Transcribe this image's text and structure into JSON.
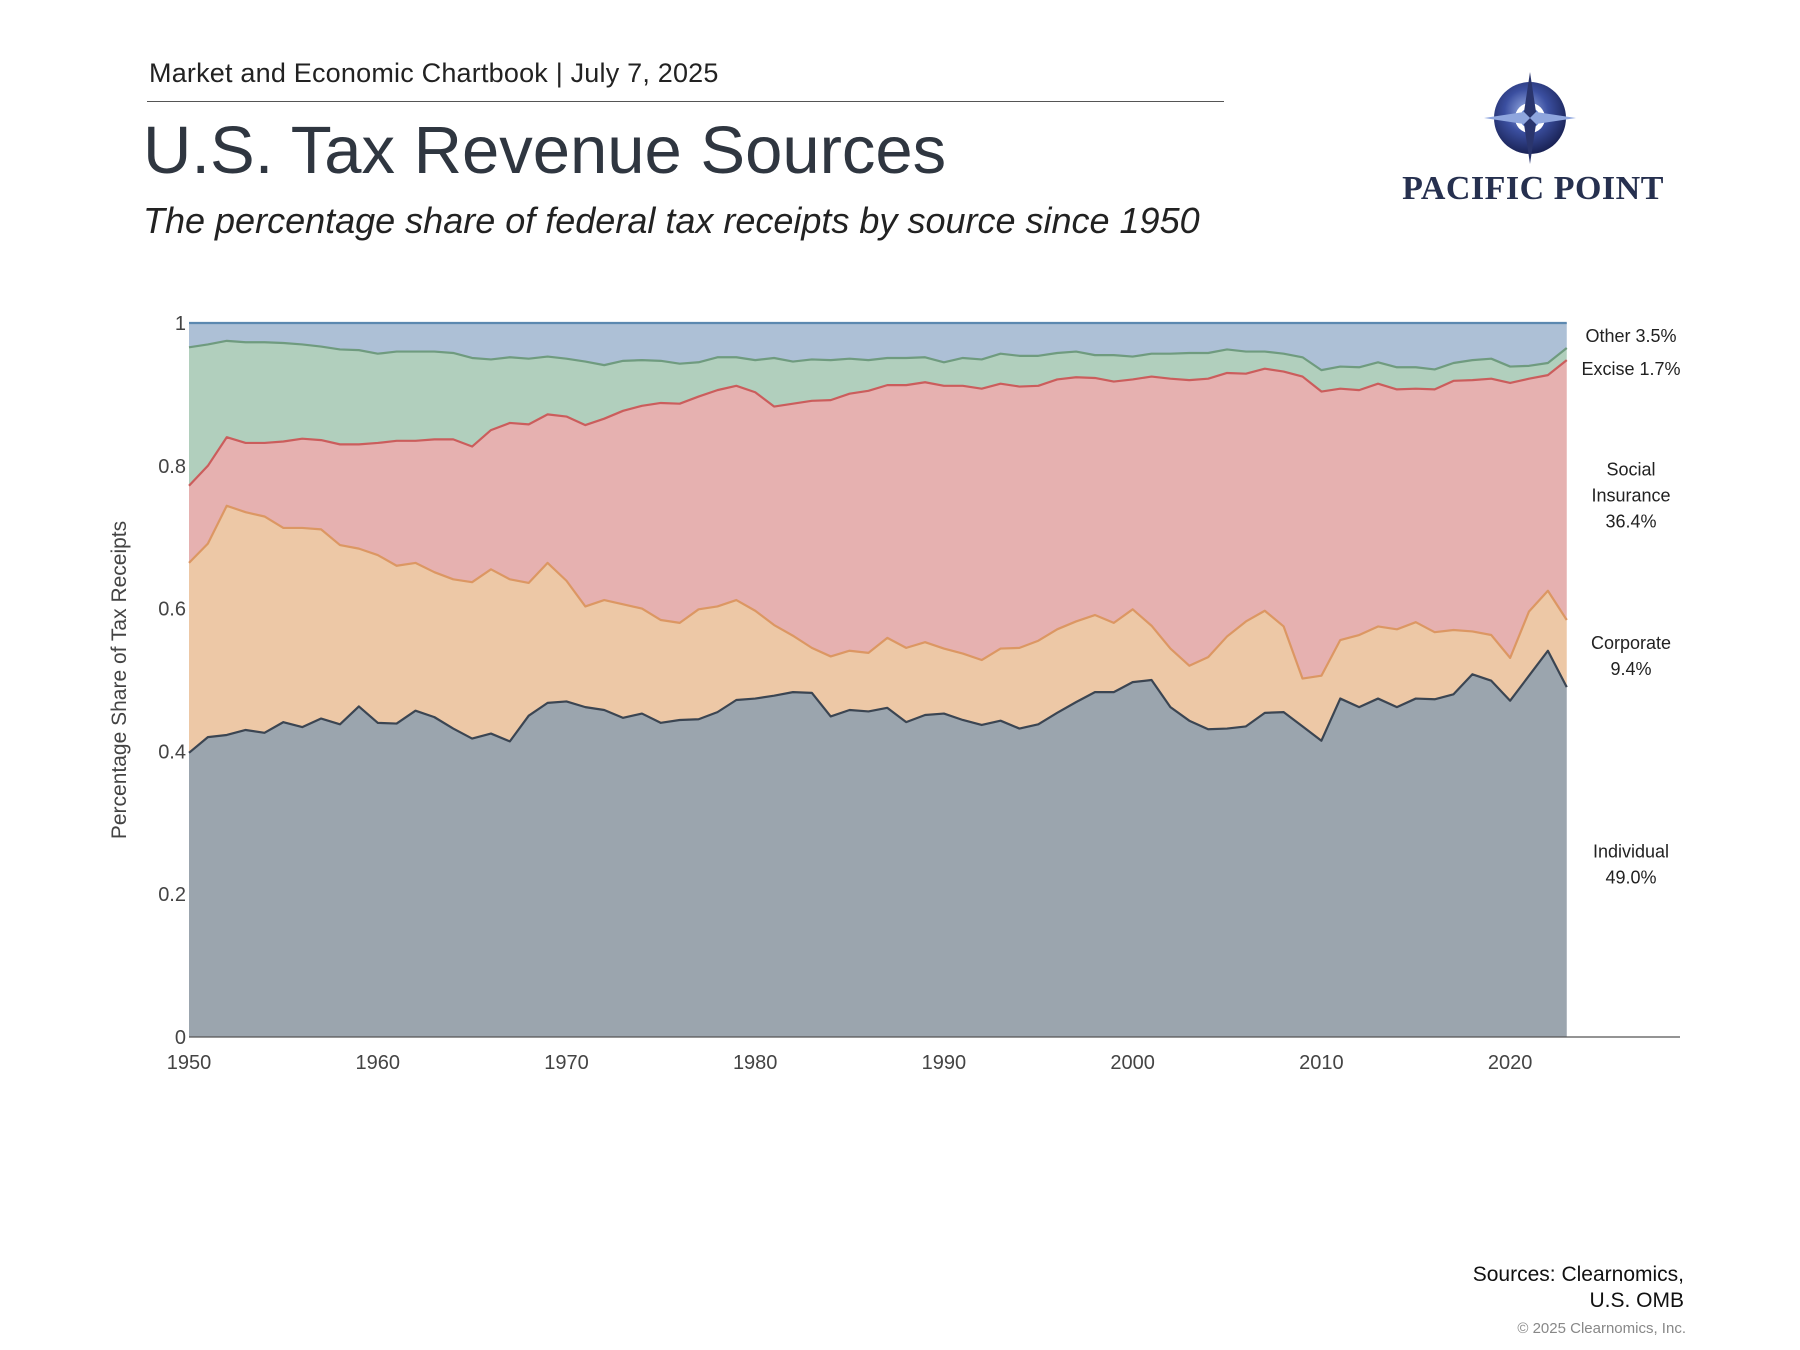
{
  "header": {
    "chartbook": "Market and Economic Chartbook | July 7, 2025",
    "title": "U.S. Tax Revenue Sources",
    "subtitle": "The percentage share of federal tax receipts by source since 1950"
  },
  "logo": {
    "text": "PACIFIC POINT",
    "icon": "compass-icon"
  },
  "footer": {
    "sources_line1": "Sources: Clearnomics,",
    "sources_line2": "U.S. OMB",
    "copyright": "© 2025 Clearnomics, Inc."
  },
  "chart_data": {
    "type": "area",
    "stacked": true,
    "ylabel": "Percentage Share of Tax Receipts",
    "ylim": [
      0,
      1
    ],
    "xlim": [
      1950,
      2029
    ],
    "y_ticks": [
      0,
      0.2,
      0.4,
      0.6,
      0.8,
      1
    ],
    "y_tick_labels": [
      "0",
      "0.2",
      "0.4",
      "0.6",
      "0.8",
      "1"
    ],
    "x_ticks": [
      1950,
      1960,
      1970,
      1980,
      1990,
      2000,
      2010,
      2020
    ],
    "x_tick_labels": [
      "1950",
      "1960",
      "1970",
      "1980",
      "1990",
      "2000",
      "2010",
      "2020"
    ],
    "grid": false,
    "legend": "right-side inline labels",
    "x": [
      1950,
      1951,
      1952,
      1953,
      1954,
      1955,
      1956,
      1957,
      1958,
      1959,
      1960,
      1961,
      1962,
      1963,
      1964,
      1965,
      1966,
      1967,
      1968,
      1969,
      1970,
      1971,
      1972,
      1973,
      1974,
      1975,
      1976,
      1977,
      1978,
      1979,
      1980,
      1981,
      1982,
      1983,
      1984,
      1985,
      1986,
      1987,
      1988,
      1989,
      1990,
      1991,
      1992,
      1993,
      1994,
      1995,
      1996,
      1997,
      1998,
      1999,
      2000,
      2001,
      2002,
      2003,
      2004,
      2005,
      2006,
      2007,
      2008,
      2009,
      2010,
      2011,
      2012,
      2013,
      2014,
      2015,
      2016,
      2017,
      2018,
      2019,
      2020,
      2021,
      2022,
      2023
    ],
    "cumulative_series": [
      {
        "name": "Individual",
        "color": "#9ba5ae",
        "line_color": "#3b4552",
        "top": [
          0.398,
          0.42,
          0.423,
          0.43,
          0.426,
          0.441,
          0.434,
          0.446,
          0.438,
          0.463,
          0.44,
          0.439,
          0.457,
          0.448,
          0.432,
          0.418,
          0.425,
          0.414,
          0.45,
          0.468,
          0.47,
          0.462,
          0.458,
          0.447,
          0.453,
          0.44,
          0.444,
          0.445,
          0.455,
          0.472,
          0.474,
          0.478,
          0.483,
          0.482,
          0.449,
          0.458,
          0.456,
          0.461,
          0.441,
          0.451,
          0.453,
          0.444,
          0.437,
          0.443,
          0.432,
          0.438,
          0.454,
          0.469,
          0.483,
          0.483,
          0.497,
          0.5,
          0.462,
          0.443,
          0.431,
          0.432,
          0.435,
          0.454,
          0.455,
          0.435,
          0.415,
          0.474,
          0.462,
          0.474,
          0.462,
          0.474,
          0.473,
          0.48,
          0.508,
          0.499,
          0.471,
          0.506,
          0.541,
          0.49
        ]
      },
      {
        "name": "Corporate",
        "color": "#edc8a6",
        "line_color": "#dc9763",
        "top": [
          0.664,
          0.691,
          0.744,
          0.735,
          0.729,
          0.713,
          0.713,
          0.711,
          0.689,
          0.684,
          0.675,
          0.66,
          0.664,
          0.651,
          0.641,
          0.637,
          0.655,
          0.641,
          0.636,
          0.664,
          0.639,
          0.603,
          0.612,
          0.606,
          0.6,
          0.584,
          0.58,
          0.599,
          0.603,
          0.612,
          0.597,
          0.577,
          0.562,
          0.545,
          0.533,
          0.541,
          0.538,
          0.559,
          0.545,
          0.553,
          0.544,
          0.537,
          0.528,
          0.544,
          0.545,
          0.555,
          0.571,
          0.582,
          0.591,
          0.58,
          0.599,
          0.576,
          0.544,
          0.52,
          0.532,
          0.561,
          0.582,
          0.597,
          0.575,
          0.502,
          0.506,
          0.556,
          0.563,
          0.575,
          0.571,
          0.581,
          0.567,
          0.57,
          0.568,
          0.563,
          0.531,
          0.596,
          0.625,
          0.584
        ]
      },
      {
        "name": "Social Insurance",
        "color": "#e6b1b0",
        "line_color": "#cb5d5c",
        "top": [
          0.772,
          0.8,
          0.84,
          0.832,
          0.832,
          0.834,
          0.838,
          0.836,
          0.83,
          0.83,
          0.832,
          0.835,
          0.835,
          0.837,
          0.837,
          0.827,
          0.85,
          0.86,
          0.858,
          0.872,
          0.869,
          0.857,
          0.866,
          0.877,
          0.884,
          0.888,
          0.887,
          0.897,
          0.906,
          0.912,
          0.903,
          0.883,
          0.887,
          0.891,
          0.892,
          0.901,
          0.905,
          0.913,
          0.913,
          0.917,
          0.912,
          0.912,
          0.908,
          0.915,
          0.911,
          0.912,
          0.921,
          0.924,
          0.923,
          0.918,
          0.921,
          0.925,
          0.922,
          0.92,
          0.922,
          0.93,
          0.929,
          0.936,
          0.932,
          0.925,
          0.904,
          0.908,
          0.906,
          0.915,
          0.907,
          0.908,
          0.907,
          0.919,
          0.92,
          0.922,
          0.916,
          0.922,
          0.927,
          0.948
        ]
      },
      {
        "name": "Excise",
        "color": "#b1cfbd",
        "line_color": "#6f9b7f",
        "top": [
          0.966,
          0.97,
          0.975,
          0.973,
          0.973,
          0.972,
          0.97,
          0.967,
          0.963,
          0.962,
          0.957,
          0.96,
          0.96,
          0.96,
          0.958,
          0.951,
          0.949,
          0.952,
          0.95,
          0.953,
          0.95,
          0.946,
          0.941,
          0.947,
          0.948,
          0.947,
          0.943,
          0.945,
          0.952,
          0.952,
          0.948,
          0.951,
          0.946,
          0.949,
          0.948,
          0.95,
          0.948,
          0.951,
          0.951,
          0.952,
          0.945,
          0.951,
          0.949,
          0.957,
          0.954,
          0.954,
          0.958,
          0.96,
          0.955,
          0.955,
          0.953,
          0.957,
          0.957,
          0.958,
          0.958,
          0.963,
          0.96,
          0.96,
          0.957,
          0.952,
          0.934,
          0.939,
          0.938,
          0.945,
          0.938,
          0.938,
          0.935,
          0.944,
          0.948,
          0.95,
          0.939,
          0.94,
          0.944,
          0.965
        ]
      },
      {
        "name": "Other",
        "color": "#adc0d6",
        "line_color": "#5b88b0",
        "top": [
          1.0,
          1.0,
          1.0,
          1.0,
          1.0,
          1.0,
          1.0,
          1.0,
          1.0,
          1.0,
          1.0,
          1.0,
          1.0,
          1.0,
          1.0,
          1.0,
          1.0,
          1.0,
          1.0,
          1.0,
          1.0,
          1.0,
          1.0,
          1.0,
          1.0,
          1.0,
          1.0,
          1.0,
          1.0,
          1.0,
          1.0,
          1.0,
          1.0,
          1.0,
          1.0,
          1.0,
          1.0,
          1.0,
          1.0,
          1.0,
          1.0,
          1.0,
          1.0,
          1.0,
          1.0,
          1.0,
          1.0,
          1.0,
          1.0,
          1.0,
          1.0,
          1.0,
          1.0,
          1.0,
          1.0,
          1.0,
          1.0,
          1.0,
          1.0,
          1.0,
          1.0,
          1.0,
          1.0,
          1.0,
          1.0,
          1.0,
          1.0,
          1.0,
          1.0,
          1.0,
          1.0,
          1.0,
          1.0,
          1.0
        ]
      }
    ],
    "end_labels": [
      {
        "series": "Other",
        "lines": [
          "Other  3.5%"
        ],
        "y": 0.983
      },
      {
        "series": "Excise",
        "lines": [
          "Excise  1.7%"
        ],
        "y": 0.937
      },
      {
        "series": "Social Insurance",
        "lines": [
          "Social",
          "Insurance",
          "36.4%"
        ],
        "y": 0.76
      },
      {
        "series": "Corporate",
        "lines": [
          "Corporate",
          "9.4%"
        ],
        "y": 0.535
      },
      {
        "series": "Individual",
        "lines": [
          "Individual",
          "49.0%"
        ],
        "y": 0.243
      }
    ]
  }
}
